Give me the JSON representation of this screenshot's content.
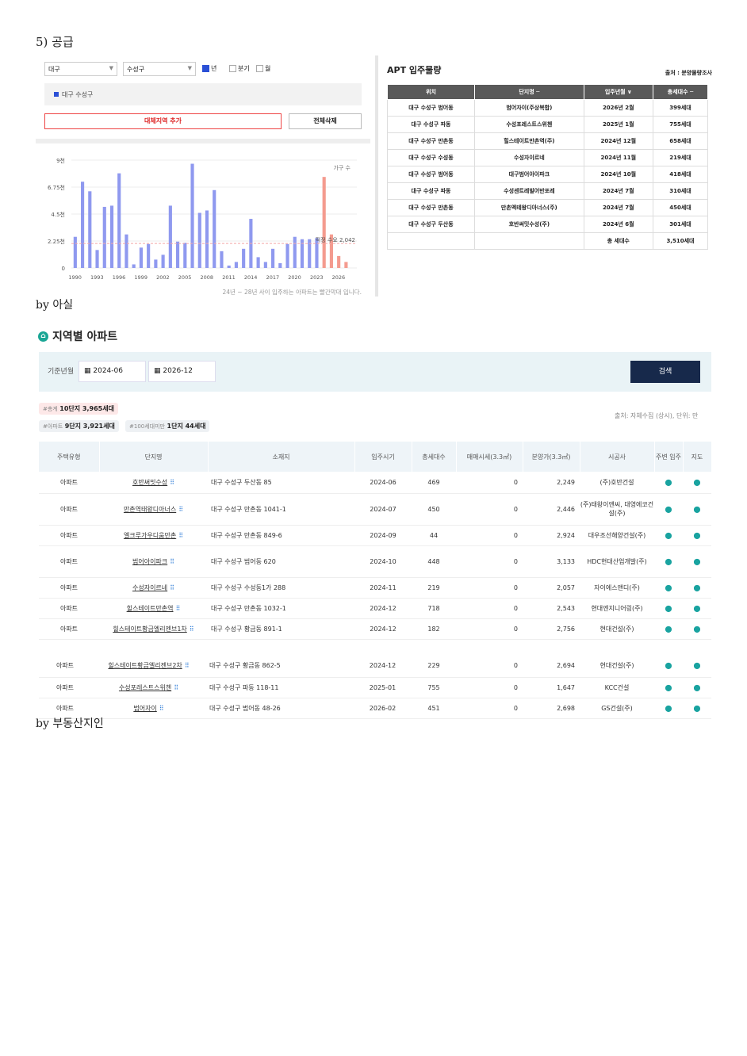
{
  "heading": "5) 공급",
  "byline1": "by 아실",
  "byline2": "by 부동산지인",
  "left_panel": {
    "sel_city": "대구",
    "sel_district": "수성구",
    "chk": [
      {
        "label": "년",
        "on": true
      },
      {
        "label": "분기",
        "on": false
      },
      {
        "label": "월",
        "on": false
      }
    ],
    "region": "대구 수성구",
    "add_btn": "대체지역 추가",
    "del_btn": "전체삭제",
    "note": "24년 ~ 28년 사이 입주하는 아파트는 빨간막대 입니다."
  },
  "chart_data": {
    "type": "bar",
    "yticks": [
      "0",
      "2.25천",
      "4.5천",
      "6.75천",
      "9천"
    ],
    "ylim": [
      0,
      9000
    ],
    "xticks": [
      "1990",
      "1993",
      "1996",
      "1999",
      "2002",
      "2005",
      "2008",
      "2011",
      "2014",
      "2017",
      "2020",
      "2023",
      "2026"
    ],
    "legend": "가구 수",
    "demand_label": "적정 수요 2,042",
    "demand": 2042,
    "values": [
      2600,
      7200,
      6400,
      1500,
      5100,
      5200,
      7900,
      2800,
      300,
      1700,
      2000,
      700,
      1100,
      5200,
      2200,
      2100,
      8700,
      4600,
      4800,
      6500,
      1400,
      200,
      500,
      1600,
      4100,
      900,
      500,
      1600,
      400,
      2000,
      2600,
      2400,
      2400,
      2500,
      7600,
      2800,
      1000,
      500,
      0
    ],
    "red_from": 34,
    "colors": {
      "blue": "#8f99ef",
      "red": "#f49b8f",
      "demand": "#f4a6a6"
    }
  },
  "apt": {
    "title": "APT 입주물량",
    "source": "출처 : 분양물량조사",
    "headers": [
      "위치",
      "단지명 ─",
      "입주년월 ∨",
      "총세대수 ─"
    ],
    "rows": [
      [
        "대구 수성구 범어동",
        "범어자이(주상복합)",
        "2026년 2월",
        "399세대"
      ],
      [
        "대구 수성구 파동",
        "수성포레스트스위첸",
        "2025년 1월",
        "755세대"
      ],
      [
        "대구 수성구 만촌동",
        "힐스테이트만촌역(주)",
        "2024년 12월",
        "658세대"
      ],
      [
        "대구 수성구 수성동",
        "수성자이르네",
        "2024년 11월",
        "219세대"
      ],
      [
        "대구 수성구 범어동",
        "대구범어아이파크",
        "2024년 10월",
        "418세대"
      ],
      [
        "대구 수성구 파동",
        "수성센트레빌어반포레",
        "2024년 7월",
        "310세대"
      ],
      [
        "대구 수성구 만촌동",
        "만촌엑테왕디아너스(주)",
        "2024년 7월",
        "450세대"
      ],
      [
        "대구 수성구 두산동",
        "호반써밋수성(주)",
        "2024년 6월",
        "301세대"
      ],
      [
        "",
        "",
        "총 세대수",
        "3,510세대"
      ]
    ]
  },
  "region": {
    "title": "지역별 아파트",
    "filter_label": "기준년월",
    "from": "2024-06",
    "to": "2026-12",
    "search": "검색",
    "tag1_pre": "#총계",
    "tag1": "10단지 3,965세대",
    "tag2_pre": "#아파트",
    "tag2": "9단지 3,921세대",
    "tag3_pre": "#100세대미만",
    "tag3": "1단지 44세대",
    "source": "출처: 자체수집 (상시), 단위: 만",
    "headers": [
      "주택유형",
      "단지명",
      "소재지",
      "입주시기",
      "총세대수",
      "매매시세(3.3㎡)",
      "분양가(3.3㎡)",
      "시공사",
      "주변 입주",
      "지도"
    ],
    "rows": [
      [
        "아파트",
        "호반써밋수성",
        "대구 수성구 두산동 85",
        "2024-06",
        "469",
        "0",
        "2,249",
        "(주)호반건설"
      ],
      [
        "아파트",
        "만촌역태왕디아너스",
        "대구 수성구 만촌동 1041-1",
        "2024-07",
        "450",
        "0",
        "2,446",
        "(주)태왕이앤씨, 대영에코건설(주)"
      ],
      [
        "아파트",
        "엘크루가우디움만촌",
        "대구 수성구 만촌동 849-6",
        "2024-09",
        "44",
        "0",
        "2,924",
        "대우조선해양건설(주)"
      ],
      [
        "아파트",
        "범어아이파크",
        "대구 수성구 범어동 620",
        "2024-10",
        "448",
        "0",
        "3,133",
        "HDC현대산업개발(주)"
      ],
      [
        "아파트",
        "수성자이르네",
        "대구 수성구 수성동1가 288",
        "2024-11",
        "219",
        "0",
        "2,057",
        "자이에스앤디(주)"
      ],
      [
        "아파트",
        "힐스테이트만촌역",
        "대구 수성구 만촌동 1032-1",
        "2024-12",
        "718",
        "0",
        "2,543",
        "현대엔지니어링(주)"
      ],
      [
        "아파트",
        "힐스테이트황금엘리젠브1차",
        "대구 수성구 황금동 891-1",
        "2024-12",
        "182",
        "0",
        "2,756",
        "현대건설(주)"
      ]
    ],
    "rows2": [
      [
        "아파트",
        "힐스테이트황금엘리젠브2차",
        "대구 수성구 황금동 862-5",
        "2024-12",
        "229",
        "0",
        "2,694",
        "현대건설(주)"
      ],
      [
        "아파트",
        "수성포레스트스위첸",
        "대구 수성구 파동 118-11",
        "2025-01",
        "755",
        "0",
        "1,647",
        "KCC건설"
      ],
      [
        "아파트",
        "범어자이",
        "대구 수성구 범어동 48-26",
        "2026-02",
        "451",
        "0",
        "2,698",
        "GS건설(주)"
      ]
    ]
  }
}
